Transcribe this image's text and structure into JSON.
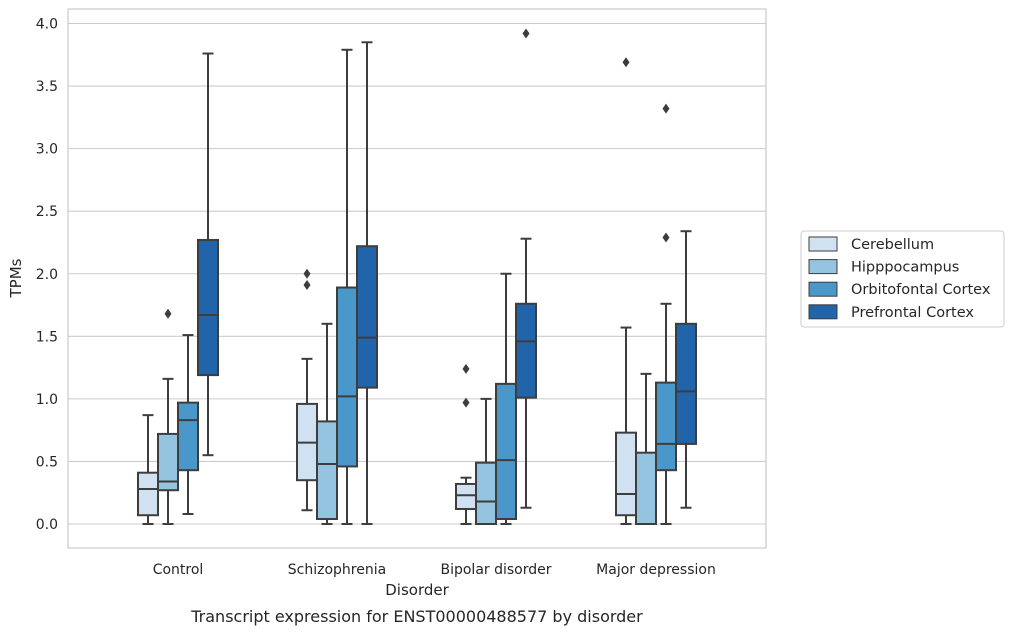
{
  "chart_data": {
    "type": "boxplot",
    "caption": "Transcript expression for ENST00000488577 by disorder",
    "xlabel": "Disorder",
    "ylabel": "TPMs",
    "ylim": [
      -0.18,
      4.12
    ],
    "yticks": [
      "0.0",
      "0.5",
      "1.0",
      "1.5",
      "2.0",
      "2.5",
      "3.0",
      "3.5",
      "4.0"
    ],
    "grid": "horizontal",
    "legend_position": "right",
    "categories": [
      "Control",
      "Schizophrenia",
      "Bipolar disorder",
      "Major depression"
    ],
    "series": [
      {
        "name": "Cerebellum",
        "color": "#d0e1f2",
        "boxes": [
          {
            "whislo": 0.0,
            "q1": 0.07,
            "med": 0.28,
            "q3": 0.41,
            "whishi": 0.87,
            "fliers": []
          },
          {
            "whislo": 0.11,
            "q1": 0.35,
            "med": 0.65,
            "q3": 0.96,
            "whishi": 1.32,
            "fliers": [
              1.91,
              2.0
            ]
          },
          {
            "whislo": 0.0,
            "q1": 0.12,
            "med": 0.23,
            "q3": 0.32,
            "whishi": 0.37,
            "fliers": [
              0.97,
              1.24
            ]
          },
          {
            "whislo": 0.0,
            "q1": 0.07,
            "med": 0.24,
            "q3": 0.73,
            "whishi": 1.57,
            "fliers": [
              3.69
            ]
          }
        ]
      },
      {
        "name": "Hipppocampus",
        "color": "#94c4df",
        "boxes": [
          {
            "whislo": 0.0,
            "q1": 0.27,
            "med": 0.34,
            "q3": 0.72,
            "whishi": 1.16,
            "fliers": [
              1.68
            ]
          },
          {
            "whislo": 0.0,
            "q1": 0.04,
            "med": 0.48,
            "q3": 0.82,
            "whishi": 1.6,
            "fliers": []
          },
          {
            "whislo": 0.0,
            "q1": 0.0,
            "med": 0.18,
            "q3": 0.49,
            "whishi": 1.0,
            "fliers": []
          },
          {
            "whislo": 0.0,
            "q1": 0.0,
            "med": 0.0,
            "q3": 0.57,
            "whishi": 1.2,
            "fliers": []
          }
        ]
      },
      {
        "name": "Orbitofontal Cortex",
        "color": "#4a98c9",
        "boxes": [
          {
            "whislo": 0.08,
            "q1": 0.43,
            "med": 0.83,
            "q3": 0.97,
            "whishi": 1.51,
            "fliers": []
          },
          {
            "whislo": 0.0,
            "q1": 0.46,
            "med": 1.02,
            "q3": 1.89,
            "whishi": 3.79,
            "fliers": []
          },
          {
            "whislo": 0.0,
            "q1": 0.04,
            "med": 0.51,
            "q3": 1.12,
            "whishi": 2.0,
            "fliers": []
          },
          {
            "whislo": 0.0,
            "q1": 0.43,
            "med": 0.64,
            "q3": 1.13,
            "whishi": 1.76,
            "fliers": [
              2.29,
              3.32
            ]
          }
        ]
      },
      {
        "name": "Prefrontal Cortex",
        "color": "#2264aa",
        "boxes": [
          {
            "whislo": 0.55,
            "q1": 1.19,
            "med": 1.67,
            "q3": 2.27,
            "whishi": 3.76,
            "fliers": []
          },
          {
            "whislo": 0.0,
            "q1": 1.09,
            "med": 1.49,
            "q3": 2.22,
            "whishi": 3.85,
            "fliers": []
          },
          {
            "whislo": 0.13,
            "q1": 1.01,
            "med": 1.46,
            "q3": 1.76,
            "whishi": 2.28,
            "fliers": [
              3.92
            ]
          },
          {
            "whislo": 0.13,
            "q1": 0.64,
            "med": 1.06,
            "q3": 1.6,
            "whishi": 2.34,
            "fliers": []
          }
        ]
      }
    ]
  }
}
